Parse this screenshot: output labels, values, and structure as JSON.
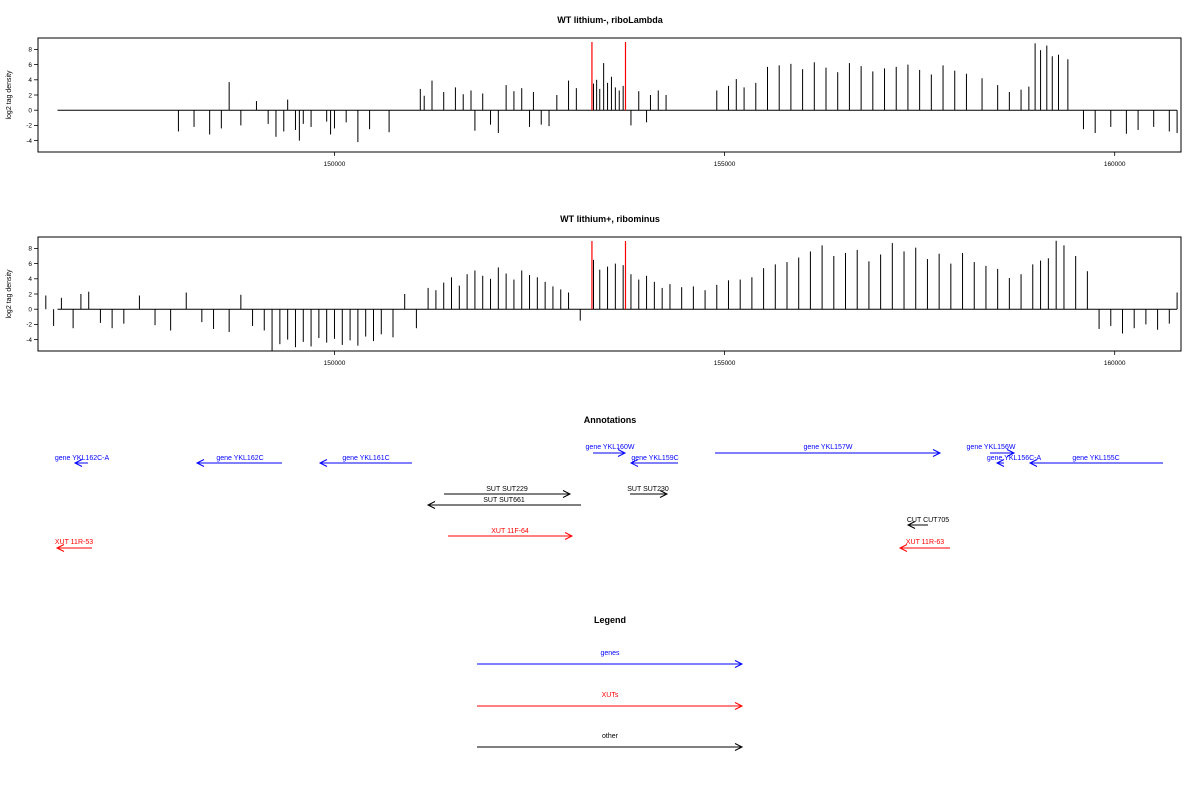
{
  "chart_data": [
    {
      "type": "bar",
      "title": "WT lithium-, riboLambda",
      "ylabel": "log2 tag density",
      "xlim": [
        146200,
        160850
      ],
      "ylim": [
        -5.5,
        9.5
      ],
      "yticks": [
        -4,
        -2,
        0,
        2,
        4,
        6,
        8
      ],
      "xticks": [
        150000,
        155000,
        160000
      ],
      "grid": false,
      "markers": [
        153300,
        153730
      ],
      "marker_color": "#ff0000",
      "x": [
        148000,
        148200,
        148400,
        148550,
        148650,
        148800,
        149000,
        149150,
        149250,
        149350,
        149400,
        149500,
        149550,
        149600,
        149700,
        149900,
        149950,
        150000,
        150150,
        150300,
        150450,
        150700,
        151100,
        151150,
        151250,
        151400,
        151550,
        151650,
        151750,
        151800,
        151900,
        152000,
        152100,
        152200,
        152300,
        152400,
        152500,
        152550,
        152650,
        152750,
        152850,
        153000,
        153100,
        153320,
        153360,
        153400,
        153450,
        153500,
        153550,
        153600,
        153650,
        153700,
        153800,
        153900,
        154000,
        154050,
        154150,
        154250,
        154900,
        155050,
        155150,
        155250,
        155400,
        155550,
        155700,
        155850,
        156000,
        156150,
        156300,
        156450,
        156600,
        156750,
        156900,
        157050,
        157200,
        157350,
        157500,
        157650,
        157800,
        157950,
        158100,
        158300,
        158500,
        158650,
        158800,
        158900,
        158980,
        159050,
        159130,
        159200,
        159280,
        159400,
        159600,
        159750,
        159950,
        160150,
        160300,
        160500,
        160700,
        160800
      ],
      "values": [
        -2.8,
        -2.2,
        -3.2,
        -2.4,
        3.7,
        -2.0,
        1.2,
        -1.8,
        -3.5,
        -2.8,
        1.4,
        -2.6,
        -4.0,
        -1.8,
        -2.2,
        -1.5,
        -3.2,
        -2.4,
        -1.6,
        -4.2,
        -2.5,
        -2.9,
        2.8,
        1.9,
        3.9,
        2.4,
        3.0,
        2.1,
        2.6,
        -2.7,
        2.2,
        -1.9,
        -3.0,
        3.3,
        2.5,
        2.9,
        -2.2,
        2.4,
        -1.9,
        -2.1,
        2.0,
        3.9,
        2.9,
        3.5,
        4.0,
        2.8,
        6.2,
        3.6,
        4.4,
        3.0,
        2.6,
        3.2,
        -2.0,
        2.5,
        -1.6,
        2.0,
        2.6,
        2.0,
        2.6,
        3.2,
        4.1,
        3.0,
        3.6,
        5.7,
        5.9,
        6.1,
        5.4,
        6.3,
        5.6,
        5.0,
        6.2,
        5.8,
        5.1,
        5.5,
        5.7,
        6.0,
        5.3,
        4.7,
        5.9,
        5.2,
        4.8,
        4.2,
        3.3,
        2.4,
        2.7,
        3.1,
        8.8,
        7.9,
        8.5,
        7.1,
        7.3,
        6.7,
        -2.5,
        -3.0,
        -2.2,
        -3.1,
        -2.6,
        -2.2,
        -2.8,
        -3.0
      ]
    },
    {
      "type": "bar",
      "title": "WT lithium+, ribominus",
      "ylabel": "log2 tag density",
      "xlim": [
        146200,
        160850
      ],
      "ylim": [
        -5.5,
        9.5
      ],
      "yticks": [
        -4,
        -2,
        0,
        2,
        4,
        6,
        8
      ],
      "xticks": [
        150000,
        155000,
        160000
      ],
      "grid": false,
      "markers": [
        153300,
        153730
      ],
      "marker_color": "#ff0000",
      "x": [
        146300,
        146400,
        146500,
        146650,
        146750,
        146850,
        147000,
        147150,
        147300,
        147500,
        147700,
        147900,
        148100,
        148300,
        148450,
        148650,
        148800,
        148950,
        149100,
        149200,
        149300,
        149400,
        149500,
        149600,
        149700,
        149800,
        149900,
        150000,
        150100,
        150200,
        150300,
        150400,
        150500,
        150600,
        150750,
        150900,
        151050,
        151200,
        151300,
        151400,
        151500,
        151600,
        151700,
        151800,
        151900,
        152000,
        152100,
        152200,
        152300,
        152400,
        152500,
        152600,
        152700,
        152800,
        152900,
        153000,
        153150,
        153320,
        153400,
        153500,
        153600,
        153700,
        153800,
        153900,
        154000,
        154100,
        154200,
        154300,
        154450,
        154600,
        154750,
        154900,
        155050,
        155200,
        155350,
        155500,
        155650,
        155800,
        155950,
        156100,
        156250,
        156400,
        156550,
        156700,
        156850,
        157000,
        157150,
        157300,
        157450,
        157600,
        157750,
        157900,
        158050,
        158200,
        158350,
        158500,
        158650,
        158800,
        158950,
        159050,
        159150,
        159250,
        159350,
        159500,
        159650,
        159800,
        159950,
        160100,
        160250,
        160400,
        160550,
        160700,
        160800
      ],
      "values": [
        1.8,
        -2.2,
        1.5,
        -2.5,
        2.0,
        2.3,
        -1.8,
        -2.5,
        -1.9,
        1.8,
        -2.1,
        -2.8,
        2.2,
        -1.7,
        -2.6,
        -3.0,
        1.9,
        -2.2,
        -2.8,
        -5.5,
        -4.6,
        -4.0,
        -5.0,
        -4.3,
        -4.9,
        -3.8,
        -4.4,
        -3.9,
        -4.7,
        -4.1,
        -4.8,
        -3.6,
        -4.2,
        -3.3,
        -3.7,
        2.0,
        -2.5,
        2.8,
        2.5,
        3.5,
        4.2,
        3.1,
        4.6,
        5.1,
        4.4,
        4.0,
        5.5,
        4.7,
        3.9,
        5.1,
        4.5,
        4.2,
        3.6,
        3.0,
        2.6,
        2.2,
        -1.5,
        6.5,
        5.2,
        5.6,
        6.0,
        5.8,
        4.6,
        3.9,
        4.4,
        3.6,
        2.8,
        3.3,
        2.9,
        3.0,
        2.5,
        3.2,
        3.8,
        3.9,
        4.2,
        5.4,
        5.9,
        6.2,
        6.8,
        7.6,
        8.4,
        7.0,
        7.4,
        7.8,
        6.3,
        7.2,
        8.7,
        7.6,
        8.1,
        6.6,
        7.3,
        6.0,
        7.4,
        6.2,
        5.7,
        5.3,
        4.1,
        4.6,
        5.9,
        6.4,
        6.7,
        9.0,
        8.4,
        7.0,
        5.0,
        -2.6,
        -2.2,
        -3.2,
        -2.5,
        -2.0,
        -2.7,
        -1.9,
        2.2
      ]
    }
  ],
  "figure": {
    "plot1_title": "WT lithium-, riboLambda",
    "plot2_title": "WT lithium+, ribominus",
    "ylabel": "log2 tag density",
    "annotations_title": "Annotations",
    "legend_title": "Legend",
    "colors": {
      "gene": "#0000ff",
      "xut": "#ff0000",
      "other": "#000000"
    },
    "annotations": [
      {
        "label": "gene YKL162C-A",
        "type": "gene"
      },
      {
        "label": "gene YKL162C",
        "type": "gene"
      },
      {
        "label": "gene YKL161C",
        "type": "gene"
      },
      {
        "label": "gene YKL160W",
        "type": "gene"
      },
      {
        "label": "gene YKL159C",
        "type": "gene"
      },
      {
        "label": "gene YKL157W",
        "type": "gene"
      },
      {
        "label": "gene YKL156W",
        "type": "gene"
      },
      {
        "label": "gene YKL156C-A",
        "type": "gene"
      },
      {
        "label": "gene YKL155C",
        "type": "gene"
      },
      {
        "label": "SUT SUT229",
        "type": "other"
      },
      {
        "label": "SUT SUT661",
        "type": "other"
      },
      {
        "label": "SUT SUT230",
        "type": "other"
      },
      {
        "label": "CUT CUT705",
        "type": "other"
      },
      {
        "label": "XUT 11R-53",
        "type": "xut"
      },
      {
        "label": "XUT 11F-64",
        "type": "xut"
      },
      {
        "label": "XUT 11R-63",
        "type": "xut"
      }
    ],
    "legend": [
      {
        "label": "genes",
        "type": "gene"
      },
      {
        "label": "XUTs",
        "type": "xut"
      },
      {
        "label": "other",
        "type": "other"
      }
    ]
  }
}
